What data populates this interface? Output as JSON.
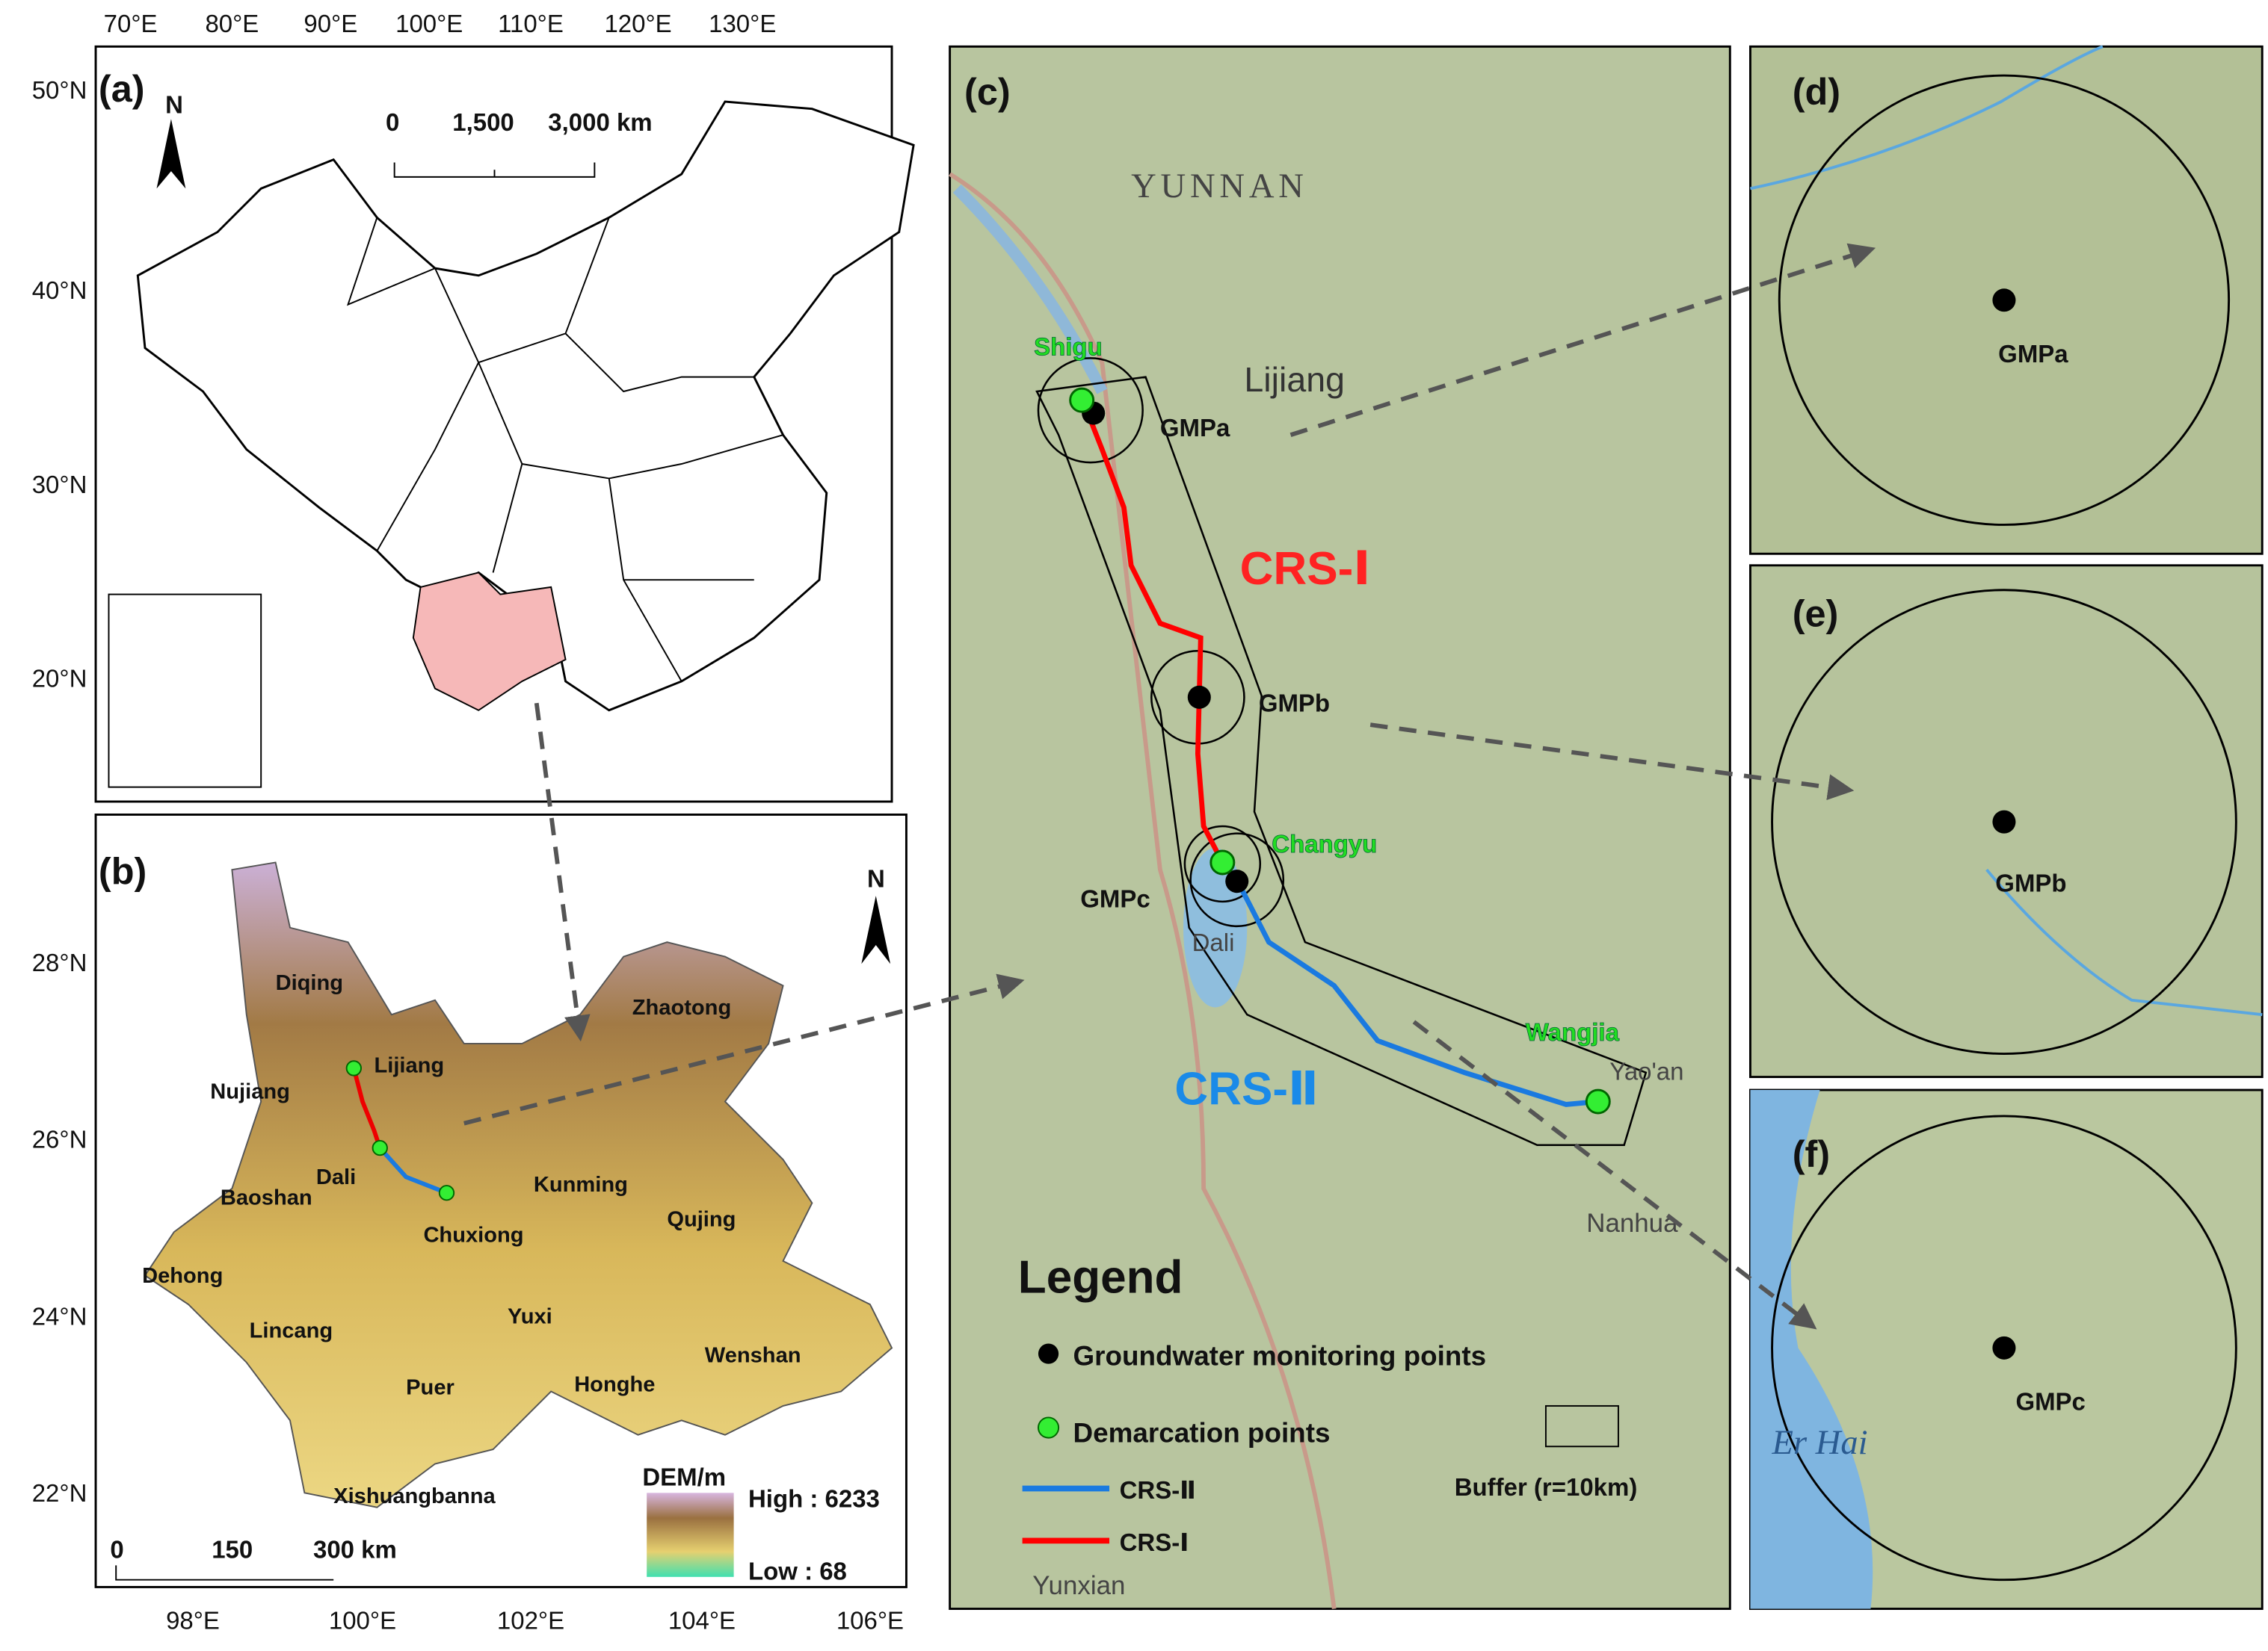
{
  "panels": {
    "a": {
      "label": "(a)",
      "lon_ticks": [
        "70°E",
        "80°E",
        "90°E",
        "100°E",
        "110°E",
        "120°E",
        "130°E"
      ],
      "lat_ticks": [
        "50°N",
        "40°N",
        "30°N",
        "20°N"
      ],
      "north": "N",
      "scale": [
        "0",
        "1,500",
        "3,000 km"
      ]
    },
    "b": {
      "label": "(b)",
      "lon_ticks": [
        "98°E",
        "100°E",
        "102°E",
        "104°E",
        "106°E"
      ],
      "lat_ticks": [
        "28°N",
        "26°N",
        "24°N",
        "22°N"
      ],
      "north": "N",
      "regions": [
        "Diqing",
        "Lijiang",
        "Nujiang",
        "Dali",
        "Chuxiong",
        "Kunming",
        "Qujing",
        "Zhaotong",
        "Baoshan",
        "Dehong",
        "Lincang",
        "Yuxi",
        "Puer",
        "Honghe",
        "Wenshan",
        "Xishuangbanna"
      ],
      "scale": [
        "0",
        "150",
        "300 km"
      ],
      "dem_title": "DEM/m",
      "dem_high": "High : 6233",
      "dem_low": "Low : 68"
    },
    "c": {
      "label": "(c)",
      "places": [
        "YUNNAN",
        "Lijiang",
        "Dali",
        "Yao'an",
        "Nanhua",
        "Yunxian"
      ],
      "demarcation": [
        "Shigu",
        "Changyu",
        "Wangjia"
      ],
      "gmp": [
        "GMPa",
        "GMPb",
        "GMPc"
      ],
      "routes": [
        "CRS-Ⅰ",
        "CRS-Ⅱ"
      ],
      "legend": {
        "title": "Legend",
        "groundwater": "Groundwater monitoring points",
        "demarcation": "Demarcation points",
        "crs2": "CRS-Ⅱ",
        "crs1": "CRS-Ⅰ",
        "buffer": "Buffer (r=10km)"
      }
    },
    "d": {
      "label": "(d)",
      "point": "GMPa"
    },
    "e": {
      "label": "(e)",
      "point": "GMPb"
    },
    "f": {
      "label": "(f)",
      "point": "GMPc",
      "lake": "Er Hai"
    }
  }
}
